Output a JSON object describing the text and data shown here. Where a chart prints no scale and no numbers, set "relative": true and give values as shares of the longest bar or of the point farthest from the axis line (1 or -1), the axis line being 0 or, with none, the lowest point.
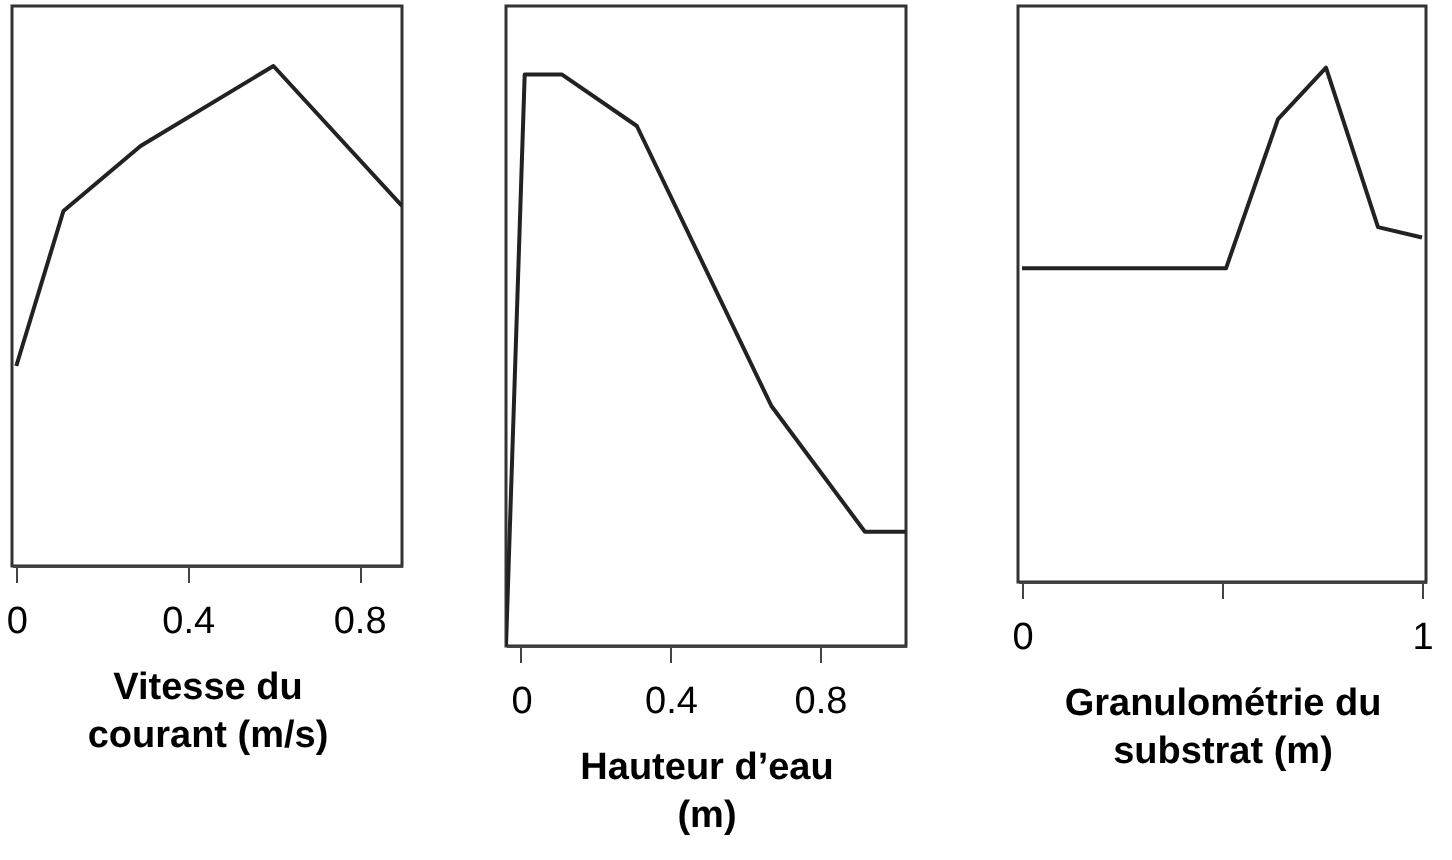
{
  "chart_data": [
    {
      "type": "line",
      "relative": true,
      "xlabel": "Vitesse du\ncourant (m/s)",
      "x": [
        0,
        0.11,
        0.29,
        0.6,
        0.9
      ],
      "xlim": [
        -0.01,
        0.9
      ],
      "xticks": [
        0,
        0.4,
        0.8
      ],
      "series": [
        {
          "color": "#222222",
          "values": [
            0.4,
            0.71,
            0.84,
            1,
            0.72
          ]
        }
      ]
    },
    {
      "type": "line",
      "relative": true,
      "xlabel": "Hauteur d’eau\n(m)",
      "x": [
        -0.04,
        0.01,
        0.11,
        0.31,
        0.67,
        0.92,
        1.03
      ],
      "xlim": [
        -0.04,
        1.03
      ],
      "xticks": [
        0,
        0.4,
        0.8
      ],
      "series": [
        {
          "color": "#222222",
          "values": [
            0,
            1,
            1,
            0.91,
            0.42,
            0.2,
            0.2
          ]
        }
      ]
    },
    {
      "type": "line",
      "relative": true,
      "xlabel": "Granulométrie du\nsubstrat (m)",
      "x": [
        0,
        0.51,
        0.64,
        0.76,
        0.89,
        1
      ],
      "xlim": [
        -0.01,
        1.01
      ],
      "xticks": [
        0,
        {
          "value": 0.5,
          "label": null
        },
        1
      ],
      "series": [
        {
          "color": "#222222",
          "values": [
            0.61,
            0.61,
            0.9,
            1,
            0.69,
            0.67
          ]
        }
      ]
    }
  ]
}
